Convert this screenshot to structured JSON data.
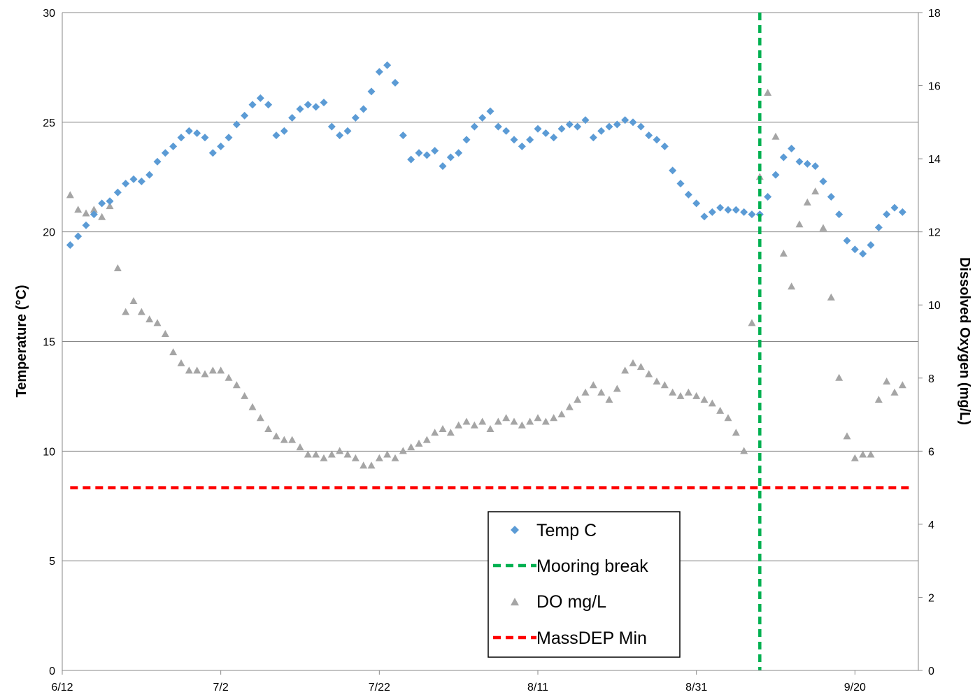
{
  "chart_data": {
    "type": "scatter",
    "x_axis": {
      "type": "date",
      "range": [
        "2019-06-12",
        "2019-09-28"
      ],
      "tick_labels": [
        "6/12",
        "7/2",
        "7/22",
        "8/11",
        "8/31",
        "9/20"
      ]
    },
    "y_left": {
      "label": "Temperature (°C)",
      "range": [
        0,
        30
      ],
      "tick_labels": [
        "0",
        "5",
        "10",
        "15",
        "20",
        "25",
        "30"
      ]
    },
    "y_right": {
      "label": "Dissolved Oxygen (mg/L)",
      "range": [
        0,
        18
      ],
      "tick_labels": [
        "0",
        "2",
        "4",
        "6",
        "8",
        "10",
        "12",
        "14",
        "16",
        "18"
      ]
    },
    "grid": "horizontal",
    "legend_position": "bottom-center",
    "series": [
      {
        "name": "Temp C",
        "axis": "left",
        "marker": "diamond",
        "color": "#5B9BD5",
        "points": [
          [
            "2019-06-13",
            19.4
          ],
          [
            "2019-06-14",
            19.8
          ],
          [
            "2019-06-15",
            20.3
          ],
          [
            "2019-06-16",
            20.8
          ],
          [
            "2019-06-17",
            21.3
          ],
          [
            "2019-06-18",
            21.4
          ],
          [
            "2019-06-19",
            21.8
          ],
          [
            "2019-06-20",
            22.2
          ],
          [
            "2019-06-21",
            22.4
          ],
          [
            "2019-06-22",
            22.3
          ],
          [
            "2019-06-23",
            22.6
          ],
          [
            "2019-06-24",
            23.2
          ],
          [
            "2019-06-25",
            23.6
          ],
          [
            "2019-06-26",
            23.9
          ],
          [
            "2019-06-27",
            24.3
          ],
          [
            "2019-06-28",
            24.6
          ],
          [
            "2019-06-29",
            24.5
          ],
          [
            "2019-06-30",
            24.3
          ],
          [
            "2019-07-01",
            23.6
          ],
          [
            "2019-07-02",
            23.9
          ],
          [
            "2019-07-03",
            24.3
          ],
          [
            "2019-07-04",
            24.9
          ],
          [
            "2019-07-05",
            25.3
          ],
          [
            "2019-07-06",
            25.8
          ],
          [
            "2019-07-07",
            26.1
          ],
          [
            "2019-07-08",
            25.8
          ],
          [
            "2019-07-09",
            24.4
          ],
          [
            "2019-07-10",
            24.6
          ],
          [
            "2019-07-11",
            25.2
          ],
          [
            "2019-07-12",
            25.6
          ],
          [
            "2019-07-13",
            25.8
          ],
          [
            "2019-07-14",
            25.7
          ],
          [
            "2019-07-15",
            25.9
          ],
          [
            "2019-07-16",
            24.8
          ],
          [
            "2019-07-17",
            24.4
          ],
          [
            "2019-07-18",
            24.6
          ],
          [
            "2019-07-19",
            25.2
          ],
          [
            "2019-07-20",
            25.6
          ],
          [
            "2019-07-21",
            26.4
          ],
          [
            "2019-07-22",
            27.3
          ],
          [
            "2019-07-23",
            27.6
          ],
          [
            "2019-07-24",
            26.8
          ],
          [
            "2019-07-25",
            24.4
          ],
          [
            "2019-07-26",
            23.3
          ],
          [
            "2019-07-27",
            23.6
          ],
          [
            "2019-07-28",
            23.5
          ],
          [
            "2019-07-29",
            23.7
          ],
          [
            "2019-07-30",
            23.0
          ],
          [
            "2019-07-31",
            23.4
          ],
          [
            "2019-08-01",
            23.6
          ],
          [
            "2019-08-02",
            24.2
          ],
          [
            "2019-08-03",
            24.8
          ],
          [
            "2019-08-04",
            25.2
          ],
          [
            "2019-08-05",
            25.5
          ],
          [
            "2019-08-06",
            24.8
          ],
          [
            "2019-08-07",
            24.6
          ],
          [
            "2019-08-08",
            24.2
          ],
          [
            "2019-08-09",
            23.9
          ],
          [
            "2019-08-10",
            24.2
          ],
          [
            "2019-08-11",
            24.7
          ],
          [
            "2019-08-12",
            24.5
          ],
          [
            "2019-08-13",
            24.3
          ],
          [
            "2019-08-14",
            24.7
          ],
          [
            "2019-08-15",
            24.9
          ],
          [
            "2019-08-16",
            24.8
          ],
          [
            "2019-08-17",
            25.1
          ],
          [
            "2019-08-18",
            24.3
          ],
          [
            "2019-08-19",
            24.6
          ],
          [
            "2019-08-20",
            24.8
          ],
          [
            "2019-08-21",
            24.9
          ],
          [
            "2019-08-22",
            25.1
          ],
          [
            "2019-08-23",
            25.0
          ],
          [
            "2019-08-24",
            24.8
          ],
          [
            "2019-08-25",
            24.4
          ],
          [
            "2019-08-26",
            24.2
          ],
          [
            "2019-08-27",
            23.9
          ],
          [
            "2019-08-28",
            22.8
          ],
          [
            "2019-08-29",
            22.2
          ],
          [
            "2019-08-30",
            21.7
          ],
          [
            "2019-08-31",
            21.3
          ],
          [
            "2019-09-01",
            20.7
          ],
          [
            "2019-09-02",
            20.9
          ],
          [
            "2019-09-03",
            21.1
          ],
          [
            "2019-09-04",
            21.0
          ],
          [
            "2019-09-05",
            21.0
          ],
          [
            "2019-09-06",
            20.9
          ],
          [
            "2019-09-07",
            20.8
          ],
          [
            "2019-09-08",
            20.8
          ],
          [
            "2019-09-09",
            21.6
          ],
          [
            "2019-09-10",
            22.6
          ],
          [
            "2019-09-11",
            23.4
          ],
          [
            "2019-09-12",
            23.8
          ],
          [
            "2019-09-13",
            23.2
          ],
          [
            "2019-09-14",
            23.1
          ],
          [
            "2019-09-15",
            23.0
          ],
          [
            "2019-09-16",
            22.3
          ],
          [
            "2019-09-17",
            21.6
          ],
          [
            "2019-09-18",
            20.8
          ],
          [
            "2019-09-19",
            19.6
          ],
          [
            "2019-09-20",
            19.2
          ],
          [
            "2019-09-21",
            19.0
          ],
          [
            "2019-09-22",
            19.4
          ],
          [
            "2019-09-23",
            20.2
          ],
          [
            "2019-09-24",
            20.8
          ],
          [
            "2019-09-25",
            21.1
          ],
          [
            "2019-09-26",
            20.9
          ]
        ]
      },
      {
        "name": "Mooring break",
        "axis": "left",
        "type": "vertical-line",
        "style": "dashed",
        "color": "#00B050",
        "x": "2019-09-08"
      },
      {
        "name": "DO mg/L",
        "axis": "right",
        "marker": "triangle",
        "color": "#A5A5A5",
        "points": [
          [
            "2019-06-13",
            13.0
          ],
          [
            "2019-06-14",
            12.6
          ],
          [
            "2019-06-15",
            12.5
          ],
          [
            "2019-06-16",
            12.6
          ],
          [
            "2019-06-17",
            12.4
          ],
          [
            "2019-06-18",
            12.7
          ],
          [
            "2019-06-19",
            11.0
          ],
          [
            "2019-06-20",
            9.8
          ],
          [
            "2019-06-21",
            10.1
          ],
          [
            "2019-06-22",
            9.8
          ],
          [
            "2019-06-23",
            9.6
          ],
          [
            "2019-06-24",
            9.5
          ],
          [
            "2019-06-25",
            9.2
          ],
          [
            "2019-06-26",
            8.7
          ],
          [
            "2019-06-27",
            8.4
          ],
          [
            "2019-06-28",
            8.2
          ],
          [
            "2019-06-29",
            8.2
          ],
          [
            "2019-06-30",
            8.1
          ],
          [
            "2019-07-01",
            8.2
          ],
          [
            "2019-07-02",
            8.2
          ],
          [
            "2019-07-03",
            8.0
          ],
          [
            "2019-07-04",
            7.8
          ],
          [
            "2019-07-05",
            7.5
          ],
          [
            "2019-07-06",
            7.2
          ],
          [
            "2019-07-07",
            6.9
          ],
          [
            "2019-07-08",
            6.6
          ],
          [
            "2019-07-09",
            6.4
          ],
          [
            "2019-07-10",
            6.3
          ],
          [
            "2019-07-11",
            6.3
          ],
          [
            "2019-07-12",
            6.1
          ],
          [
            "2019-07-13",
            5.9
          ],
          [
            "2019-07-14",
            5.9
          ],
          [
            "2019-07-15",
            5.8
          ],
          [
            "2019-07-16",
            5.9
          ],
          [
            "2019-07-17",
            6.0
          ],
          [
            "2019-07-18",
            5.9
          ],
          [
            "2019-07-19",
            5.8
          ],
          [
            "2019-07-20",
            5.6
          ],
          [
            "2019-07-21",
            5.6
          ],
          [
            "2019-07-22",
            5.8
          ],
          [
            "2019-07-23",
            5.9
          ],
          [
            "2019-07-24",
            5.8
          ],
          [
            "2019-07-25",
            6.0
          ],
          [
            "2019-07-26",
            6.1
          ],
          [
            "2019-07-27",
            6.2
          ],
          [
            "2019-07-28",
            6.3
          ],
          [
            "2019-07-29",
            6.5
          ],
          [
            "2019-07-30",
            6.6
          ],
          [
            "2019-07-31",
            6.5
          ],
          [
            "2019-08-01",
            6.7
          ],
          [
            "2019-08-02",
            6.8
          ],
          [
            "2019-08-03",
            6.7
          ],
          [
            "2019-08-04",
            6.8
          ],
          [
            "2019-08-05",
            6.6
          ],
          [
            "2019-08-06",
            6.8
          ],
          [
            "2019-08-07",
            6.9
          ],
          [
            "2019-08-08",
            6.8
          ],
          [
            "2019-08-09",
            6.7
          ],
          [
            "2019-08-10",
            6.8
          ],
          [
            "2019-08-11",
            6.9
          ],
          [
            "2019-08-12",
            6.8
          ],
          [
            "2019-08-13",
            6.9
          ],
          [
            "2019-08-14",
            7.0
          ],
          [
            "2019-08-15",
            7.2
          ],
          [
            "2019-08-16",
            7.4
          ],
          [
            "2019-08-17",
            7.6
          ],
          [
            "2019-08-18",
            7.8
          ],
          [
            "2019-08-19",
            7.6
          ],
          [
            "2019-08-20",
            7.4
          ],
          [
            "2019-08-21",
            7.7
          ],
          [
            "2019-08-22",
            8.2
          ],
          [
            "2019-08-23",
            8.4
          ],
          [
            "2019-08-24",
            8.3
          ],
          [
            "2019-08-25",
            8.1
          ],
          [
            "2019-08-26",
            7.9
          ],
          [
            "2019-08-27",
            7.8
          ],
          [
            "2019-08-28",
            7.6
          ],
          [
            "2019-08-29",
            7.5
          ],
          [
            "2019-08-30",
            7.6
          ],
          [
            "2019-08-31",
            7.5
          ],
          [
            "2019-09-01",
            7.4
          ],
          [
            "2019-09-02",
            7.3
          ],
          [
            "2019-09-03",
            7.1
          ],
          [
            "2019-09-04",
            6.9
          ],
          [
            "2019-09-05",
            6.5
          ],
          [
            "2019-09-06",
            6.0
          ],
          [
            "2019-09-07",
            9.5
          ],
          [
            "2019-09-08",
            13.5
          ],
          [
            "2019-09-09",
            15.8
          ],
          [
            "2019-09-10",
            14.6
          ],
          [
            "2019-09-11",
            11.4
          ],
          [
            "2019-09-12",
            10.5
          ],
          [
            "2019-09-13",
            12.2
          ],
          [
            "2019-09-14",
            12.8
          ],
          [
            "2019-09-15",
            13.1
          ],
          [
            "2019-09-16",
            12.1
          ],
          [
            "2019-09-17",
            10.2
          ],
          [
            "2019-09-18",
            8.0
          ],
          [
            "2019-09-19",
            6.4
          ],
          [
            "2019-09-20",
            5.8
          ],
          [
            "2019-09-21",
            5.9
          ],
          [
            "2019-09-22",
            5.9
          ],
          [
            "2019-09-23",
            7.4
          ],
          [
            "2019-09-24",
            7.9
          ],
          [
            "2019-09-25",
            7.6
          ],
          [
            "2019-09-26",
            7.8
          ]
        ]
      },
      {
        "name": "MassDEP Min",
        "axis": "right",
        "type": "horizontal-line",
        "style": "dashed",
        "color": "#FF0000",
        "value": 5
      }
    ]
  }
}
